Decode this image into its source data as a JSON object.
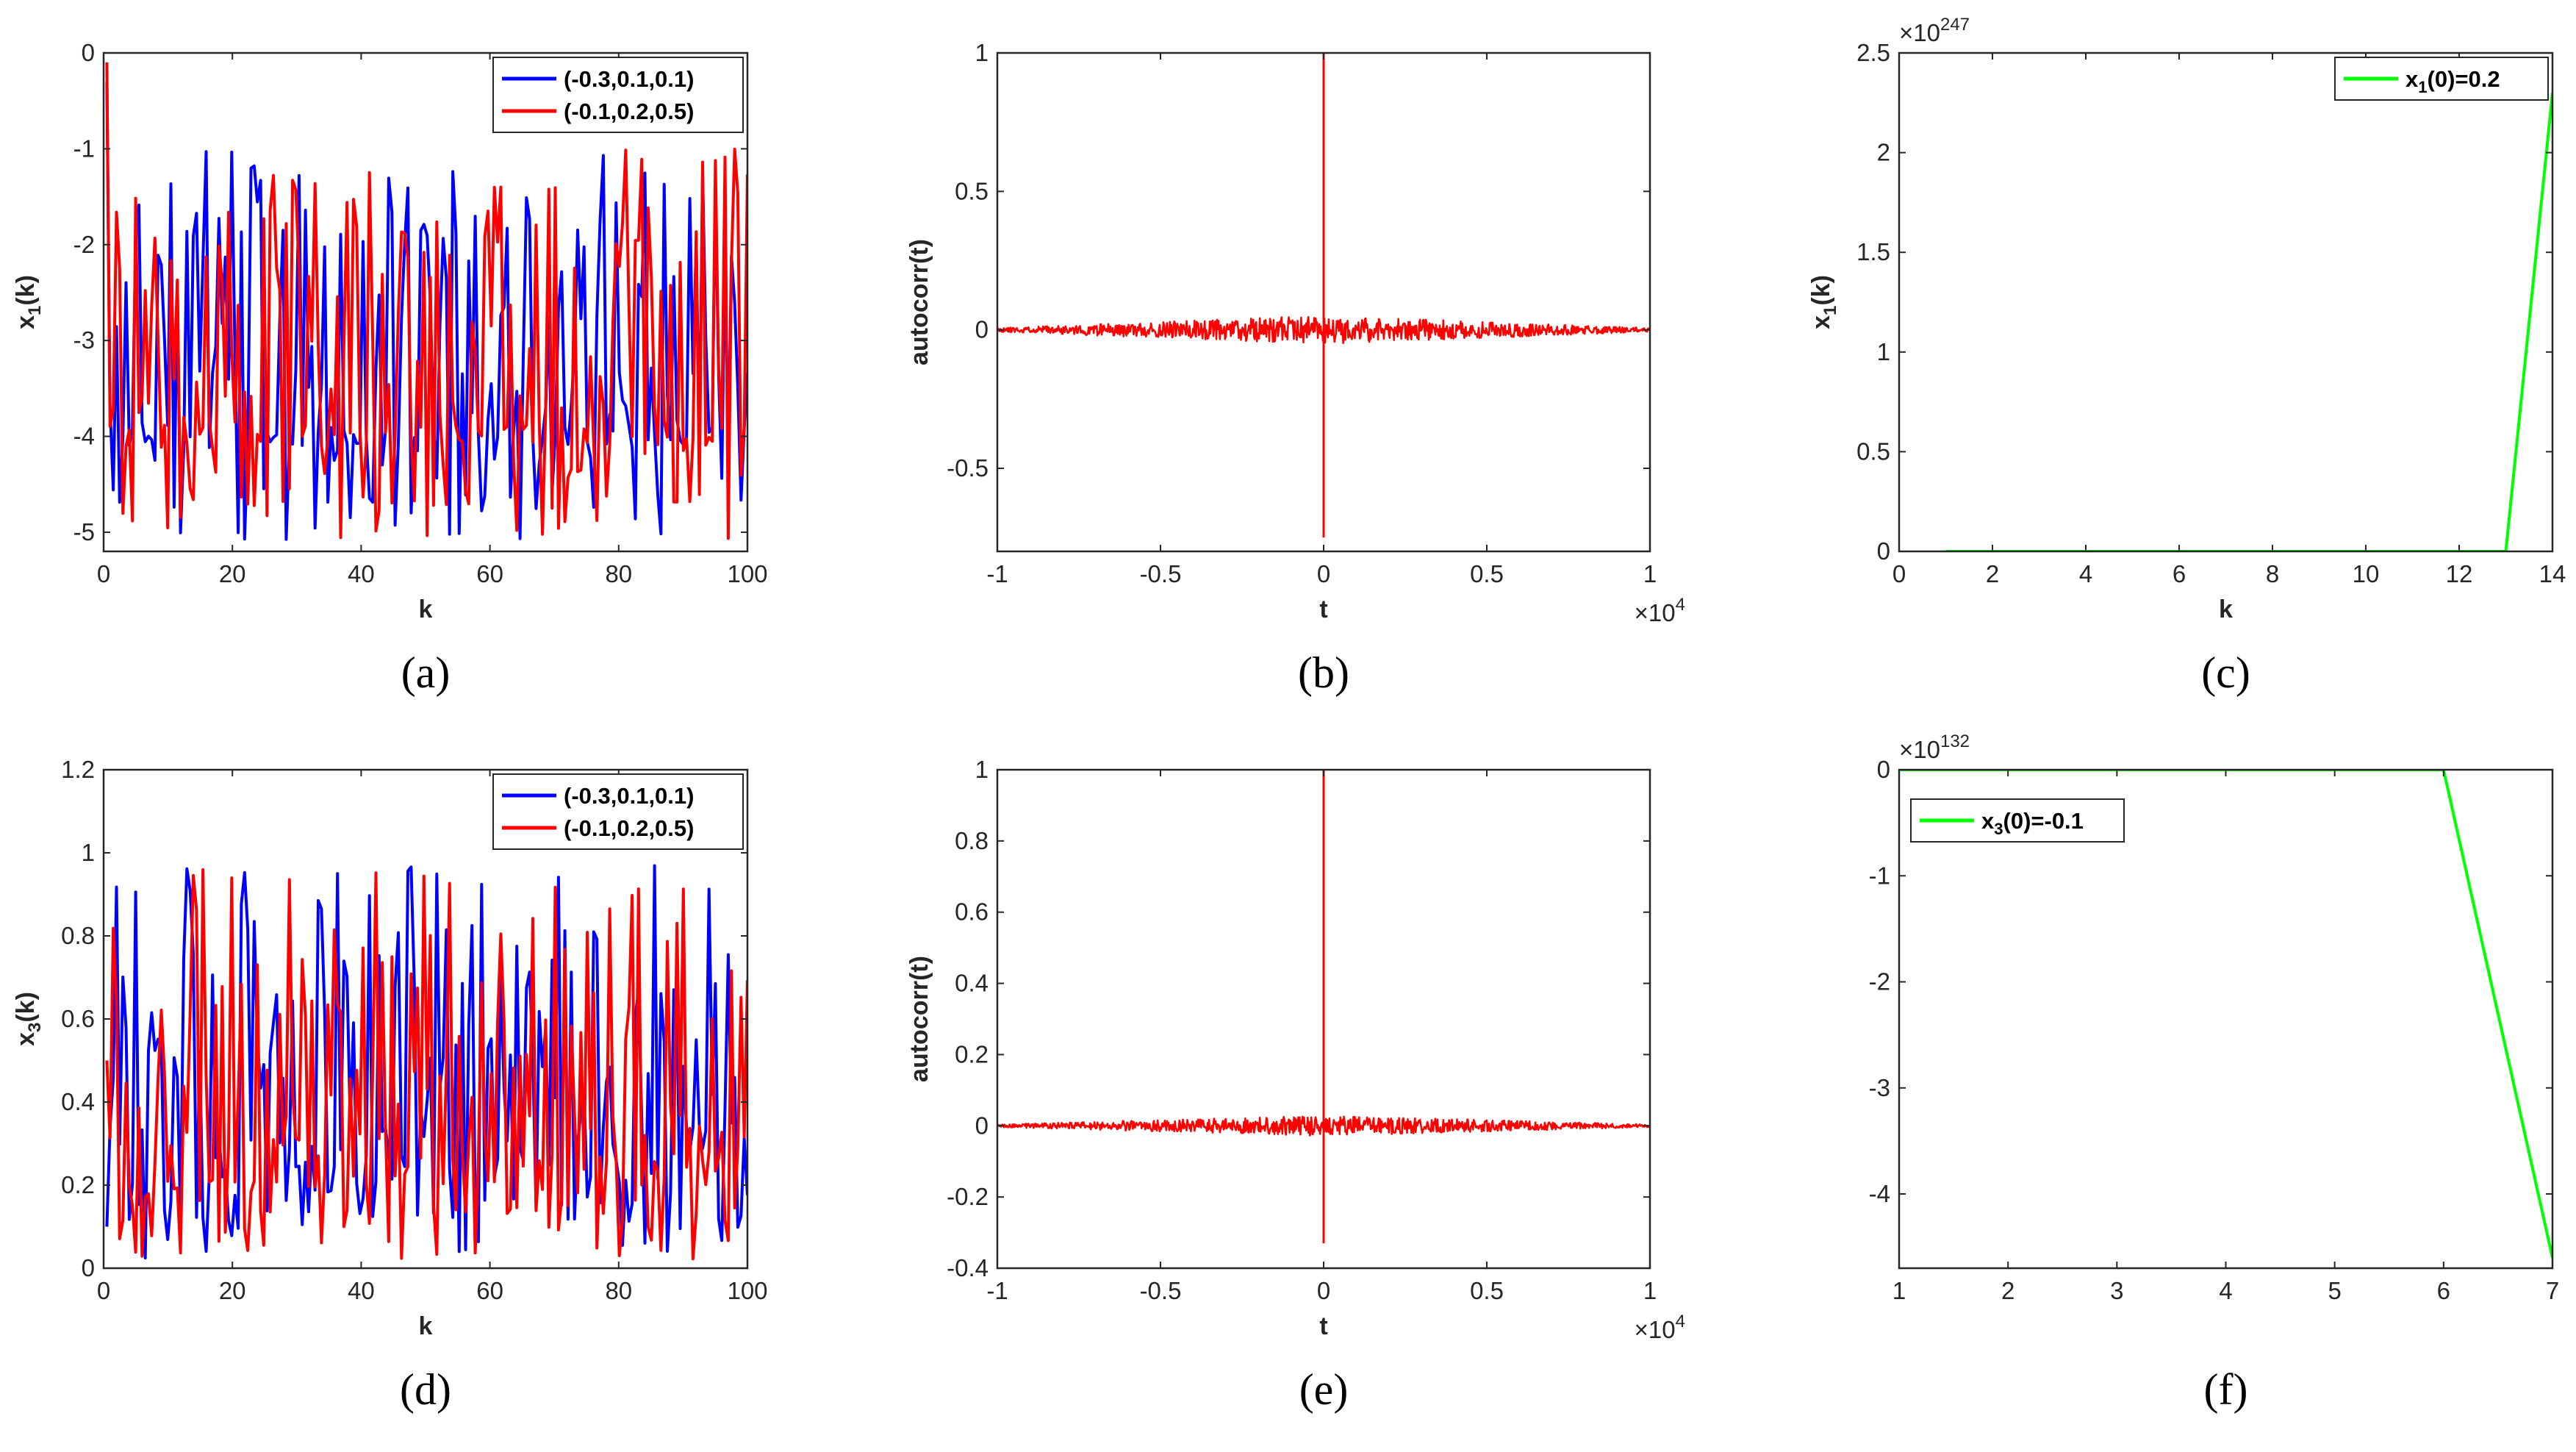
{
  "figure": {
    "captions": [
      "(a)",
      "(b)",
      "(c)",
      "(d)",
      "(e)",
      "(f)"
    ]
  },
  "colors": {
    "blue": "#0000ff",
    "red": "#ff0000",
    "green": "#00ff00",
    "axis": "#262626"
  },
  "chart_data": [
    {
      "id": "a",
      "type": "line",
      "caption": "(a)",
      "title": "",
      "xlabel": "k",
      "ylabel_base": "x",
      "ylabel_sub": "1",
      "ylabel_tail": "(k)",
      "xlim": [
        0,
        100
      ],
      "ylim": [
        -5.2,
        0
      ],
      "xticks": [
        0,
        20,
        40,
        60,
        80,
        100
      ],
      "yticks": [
        0,
        -1,
        -2,
        -3,
        -4,
        -5
      ],
      "legend_position": "top-right",
      "signal": "chaotic",
      "series": [
        {
          "name": "(-0.3,0.1,0.1)",
          "color": "#0000ff",
          "x_start": 0.5,
          "start_value": -0.3,
          "settle_value": -4.0,
          "low": -5.1,
          "high": -1.0,
          "seed": 3
        },
        {
          "name": "(-0.1,0.2,0.5)",
          "color": "#ff0000",
          "x_start": 0.5,
          "start_value": -0.1,
          "settle_value": -4.0,
          "low": -5.1,
          "high": -1.0,
          "seed": 7
        }
      ]
    },
    {
      "id": "b",
      "type": "line",
      "caption": "(b)",
      "title": "",
      "xlabel": "t",
      "ylabel": "autocorr(t)",
      "xlim": [
        -1,
        1
      ],
      "ylim": [
        -0.8,
        1
      ],
      "xticks": [
        -1,
        -0.5,
        0,
        0.5,
        1
      ],
      "yticks": [
        1,
        0.5,
        0,
        -0.5
      ],
      "xexp_base": "×10",
      "xexp_power": "4",
      "signal": "autocorrelation",
      "series": [
        {
          "name": "autocorr",
          "color": "#ff0000",
          "peak": 1,
          "dip": -0.75,
          "noise_amp": 0.045,
          "seed": 11
        }
      ]
    },
    {
      "id": "c",
      "type": "line",
      "caption": "(c)",
      "title": "",
      "xlabel": "k",
      "ylabel_base": "x",
      "ylabel_sub": "1",
      "ylabel_tail": "(k)",
      "xlim": [
        0,
        14
      ],
      "ylim": [
        0,
        2.5
      ],
      "xticks": [
        0,
        2,
        4,
        6,
        8,
        10,
        12,
        14
      ],
      "yticks": [
        0,
        0.5,
        1,
        1.5,
        2,
        2.5
      ],
      "yexp_base": "×10",
      "yexp_power": "247",
      "legend_position": "top-right",
      "series": [
        {
          "name_base": "x",
          "name_sub": "1",
          "name_tail": "(0)=0.2",
          "color": "#00ff00",
          "x": [
            1,
            13,
            14
          ],
          "y": [
            0,
            0,
            2.3
          ]
        }
      ]
    },
    {
      "id": "d",
      "type": "line",
      "caption": "(d)",
      "title": "",
      "xlabel": "k",
      "ylabel_base": "x",
      "ylabel_sub": "3",
      "ylabel_tail": "(k)",
      "xlim": [
        0,
        100
      ],
      "ylim": [
        0,
        1.2
      ],
      "xticks": [
        0,
        20,
        40,
        60,
        80,
        100
      ],
      "yticks": [
        0,
        0.2,
        0.4,
        0.6,
        0.8,
        1,
        1.2
      ],
      "legend_position": "top-right",
      "signal": "chaotic",
      "series": [
        {
          "name": "(-0.3,0.1,0.1)",
          "color": "#0000ff",
          "x_start": 0.5,
          "start_value": 0.1,
          "low": 0.02,
          "high": 0.97,
          "seed": 5
        },
        {
          "name": "(-0.1,0.2,0.5)",
          "color": "#ff0000",
          "x_start": 0.5,
          "start_value": 0.5,
          "low": 0.02,
          "high": 0.97,
          "seed": 9
        }
      ]
    },
    {
      "id": "e",
      "type": "line",
      "caption": "(e)",
      "title": "",
      "xlabel": "t",
      "ylabel": "autocorr(t)",
      "xlim": [
        -1,
        1
      ],
      "ylim": [
        -0.4,
        1
      ],
      "xticks": [
        -1,
        -0.5,
        0,
        0.5,
        1
      ],
      "yticks": [
        1,
        0.8,
        0.6,
        0.4,
        0.2,
        0,
        -0.2,
        -0.4
      ],
      "xexp_base": "×10",
      "xexp_power": "4",
      "signal": "autocorrelation",
      "series": [
        {
          "name": "autocorr",
          "color": "#ff0000",
          "peak": 1,
          "dip": -0.33,
          "noise_amp": 0.025,
          "seed": 13
        }
      ]
    },
    {
      "id": "f",
      "type": "line",
      "caption": "(f)",
      "title": "",
      "xlabel": "",
      "ylabel": "",
      "xlim": [
        1,
        7
      ],
      "ylim": [
        -4.7,
        0
      ],
      "xticks": [
        1,
        2,
        3,
        4,
        5,
        6,
        7
      ],
      "yticks": [
        0,
        -1,
        -2,
        -3,
        -4
      ],
      "yexp_base": "×10",
      "yexp_power": "132",
      "legend_position": "top-left",
      "series": [
        {
          "name_base": "x",
          "name_sub": "3",
          "name_tail": "(0)=-0.1",
          "color": "#00ff00",
          "x": [
            1,
            6,
            7
          ],
          "y": [
            0,
            0,
            -4.6
          ]
        }
      ]
    }
  ]
}
